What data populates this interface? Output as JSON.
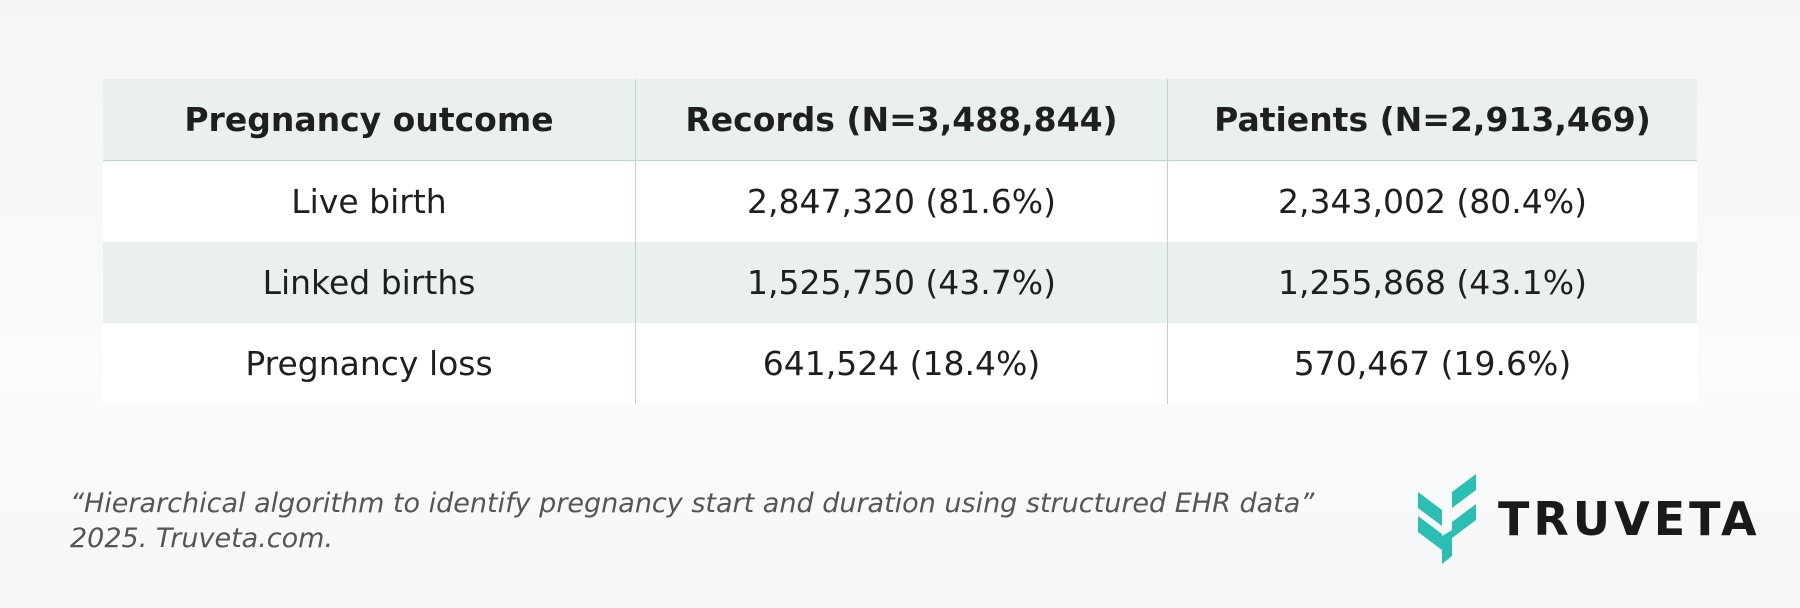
{
  "table": {
    "header": [
      "Pregnancy outcome",
      "Records (N=3,488,844)",
      "Patients (N=2,913,469)"
    ],
    "rows": [
      [
        "Live birth",
        "2,847,320 (81.6%)",
        "2,343,002 (80.4%)"
      ],
      [
        "Linked births",
        "1,525,750 (43.7%)",
        "1,255,868 (43.1%)"
      ],
      [
        "Pregnancy loss",
        "641,524 (18.4%)",
        "570,467 (19.6%)"
      ]
    ]
  },
  "citation": {
    "line1": "“Hierarchical algorithm to identify pregnancy start and duration using structured EHR data”",
    "line2": "2025. Truveta.com."
  },
  "logo": {
    "text": "TRUVETA"
  }
}
